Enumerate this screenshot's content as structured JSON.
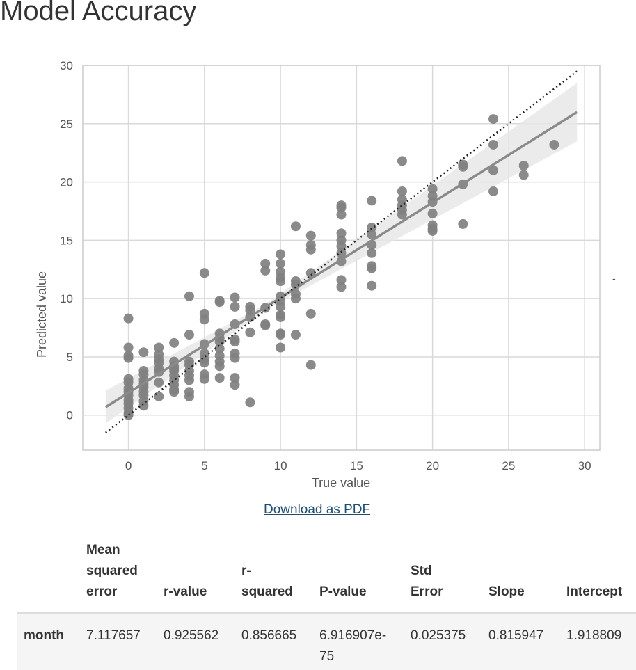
{
  "page": {
    "title": "Model Accuracy"
  },
  "chart_data": {
    "type": "scatter",
    "xlabel": "True value",
    "ylabel": "Predicted value",
    "xlim": [
      -3,
      31
    ],
    "ylim": [
      -3,
      30
    ],
    "xticks": [
      0,
      5,
      10,
      15,
      20,
      25,
      30
    ],
    "yticks": [
      0,
      5,
      10,
      15,
      20,
      25,
      30
    ],
    "grid": true,
    "regression": {
      "slope": 0.815947,
      "intercept": 1.918809,
      "x_range": [
        -1.5,
        29.5
      ],
      "confidence_band": true
    },
    "identity_line": {
      "x_range": [
        -1.5,
        29.5
      ],
      "style": "dotted"
    },
    "points": [
      [
        0,
        8.3
      ],
      [
        0,
        5.8
      ],
      [
        0,
        5.1
      ],
      [
        0,
        4.9
      ],
      [
        0,
        3.1
      ],
      [
        0,
        2.8
      ],
      [
        0,
        2.3
      ],
      [
        0,
        2.0
      ],
      [
        0,
        1.7
      ],
      [
        0,
        1.3
      ],
      [
        0,
        1.0
      ],
      [
        0,
        0.6
      ],
      [
        0,
        0.2
      ],
      [
        0,
        0.0
      ],
      [
        1,
        5.4
      ],
      [
        1,
        3.8
      ],
      [
        1,
        3.5
      ],
      [
        1,
        3.0
      ],
      [
        1,
        2.7
      ],
      [
        1,
        2.4
      ],
      [
        1,
        2.0
      ],
      [
        1,
        1.7
      ],
      [
        1,
        0.8
      ],
      [
        1,
        1.2
      ],
      [
        2,
        5.8
      ],
      [
        2,
        5.2
      ],
      [
        2,
        4.8
      ],
      [
        2,
        4.5
      ],
      [
        2,
        4.0
      ],
      [
        2,
        3.7
      ],
      [
        2,
        2.8
      ],
      [
        2,
        1.6
      ],
      [
        3,
        6.2
      ],
      [
        3,
        4.6
      ],
      [
        3,
        4.2
      ],
      [
        3,
        4.0
      ],
      [
        3,
        3.8
      ],
      [
        3,
        3.4
      ],
      [
        3,
        3.0
      ],
      [
        3,
        2.6
      ],
      [
        3,
        2.2
      ],
      [
        3,
        2.0
      ],
      [
        4,
        10.2
      ],
      [
        4,
        6.9
      ],
      [
        4,
        4.6
      ],
      [
        4,
        4.3
      ],
      [
        4,
        3.8
      ],
      [
        4,
        3.4
      ],
      [
        4,
        3.0
      ],
      [
        4,
        2.0
      ],
      [
        4,
        1.6
      ],
      [
        5,
        12.2
      ],
      [
        5,
        8.7
      ],
      [
        5,
        8.2
      ],
      [
        5,
        6.1
      ],
      [
        5,
        5.3
      ],
      [
        5,
        4.8
      ],
      [
        5,
        4.5
      ],
      [
        5,
        3.5
      ],
      [
        5,
        3.1
      ],
      [
        6,
        9.8
      ],
      [
        6,
        9.7
      ],
      [
        6,
        7.0
      ],
      [
        6,
        6.6
      ],
      [
        6,
        6.3
      ],
      [
        6,
        5.7
      ],
      [
        6,
        5.1
      ],
      [
        6,
        4.6
      ],
      [
        6,
        4.2
      ],
      [
        6,
        3.2
      ],
      [
        7,
        10.1
      ],
      [
        7,
        9.3
      ],
      [
        7,
        7.8
      ],
      [
        7,
        6.5
      ],
      [
        7,
        6.3
      ],
      [
        7,
        5.3
      ],
      [
        7,
        4.9
      ],
      [
        7,
        3.2
      ],
      [
        7,
        2.6
      ],
      [
        8,
        9.3
      ],
      [
        8,
        9.0
      ],
      [
        8,
        8.4
      ],
      [
        8,
        7.1
      ],
      [
        8,
        1.1
      ],
      [
        9,
        13.0
      ],
      [
        9,
        12.4
      ],
      [
        9,
        9.2
      ],
      [
        9,
        7.8
      ],
      [
        9,
        7.7
      ],
      [
        10,
        13.8
      ],
      [
        10,
        13.0
      ],
      [
        10,
        12.3
      ],
      [
        10,
        11.8
      ],
      [
        10,
        11.5
      ],
      [
        10,
        10.2
      ],
      [
        10,
        9.8
      ],
      [
        10,
        9.3
      ],
      [
        10,
        8.6
      ],
      [
        10,
        8.4
      ],
      [
        10,
        7.0
      ],
      [
        10,
        6.9
      ],
      [
        10,
        5.8
      ],
      [
        11,
        16.2
      ],
      [
        11,
        11.5
      ],
      [
        11,
        11.2
      ],
      [
        11,
        10.4
      ],
      [
        11,
        10.0
      ],
      [
        11,
        6.9
      ],
      [
        12,
        15.4
      ],
      [
        12,
        14.6
      ],
      [
        12,
        14.2
      ],
      [
        12,
        12.2
      ],
      [
        12,
        8.7
      ],
      [
        12,
        4.3
      ],
      [
        14,
        18.0
      ],
      [
        14,
        17.8
      ],
      [
        14,
        17.2
      ],
      [
        14,
        15.6
      ],
      [
        14,
        15.0
      ],
      [
        14,
        14.5
      ],
      [
        14,
        13.9
      ],
      [
        14,
        13.2
      ],
      [
        14,
        11.6
      ],
      [
        14,
        11.0
      ],
      [
        16,
        18.4
      ],
      [
        16,
        16.1
      ],
      [
        16,
        15.5
      ],
      [
        16,
        14.6
      ],
      [
        16,
        13.9
      ],
      [
        16,
        12.8
      ],
      [
        16,
        12.6
      ],
      [
        16,
        11.1
      ],
      [
        18,
        21.8
      ],
      [
        18,
        19.2
      ],
      [
        18,
        18.5
      ],
      [
        18,
        18.0
      ],
      [
        18,
        17.6
      ],
      [
        18,
        17.2
      ],
      [
        20,
        19.4
      ],
      [
        20,
        18.8
      ],
      [
        20,
        18.3
      ],
      [
        20,
        17.3
      ],
      [
        20,
        16.3
      ],
      [
        20,
        16.0
      ],
      [
        20,
        15.8
      ],
      [
        22,
        21.5
      ],
      [
        22,
        21.3
      ],
      [
        22,
        19.8
      ],
      [
        22,
        16.4
      ],
      [
        24,
        25.4
      ],
      [
        24,
        23.2
      ],
      [
        24,
        21.0
      ],
      [
        24,
        19.2
      ],
      [
        26,
        21.4
      ],
      [
        26,
        20.6
      ],
      [
        28,
        23.2
      ]
    ]
  },
  "side_marker": "-",
  "download": {
    "label": "Download as PDF"
  },
  "stats_table": {
    "columns": [
      [
        "Mean",
        "squared",
        "error"
      ],
      [
        "r-value"
      ],
      [
        "r-",
        "squared"
      ],
      [
        "P-value"
      ],
      [
        "Std",
        "Error"
      ],
      [
        "Slope"
      ],
      [
        "Intercept"
      ]
    ],
    "rows": [
      {
        "label": "month",
        "values": [
          "7.117657",
          "0.925562",
          "0.856665",
          "6.916907e-75",
          "0.025375",
          "0.815947",
          "1.918809"
        ]
      }
    ]
  }
}
